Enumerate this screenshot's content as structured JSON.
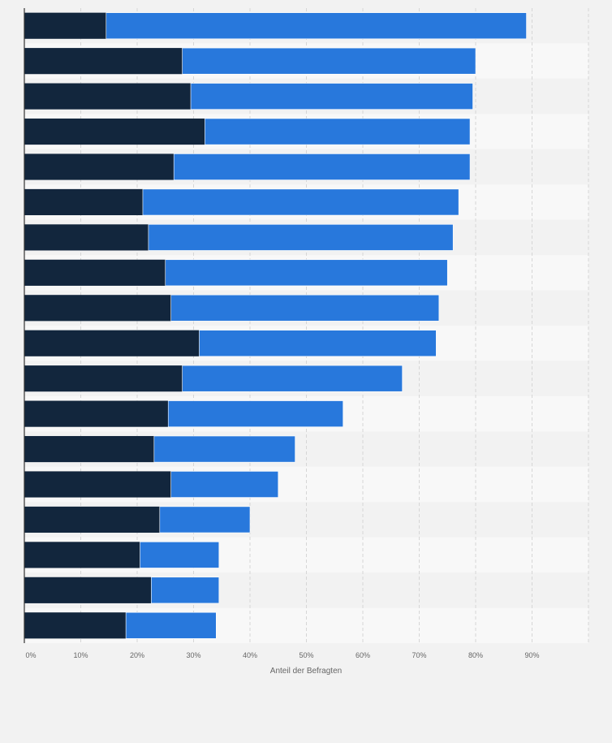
{
  "chart_data": {
    "type": "bar",
    "orientation": "horizontal",
    "stacked": true,
    "categories": [
      "",
      "",
      "",
      "",
      "",
      "",
      "",
      "",
      "",
      "",
      "",
      "",
      "",
      "",
      "",
      "",
      "",
      ""
    ],
    "series": [
      {
        "color": "#12263d",
        "values": [
          14.5,
          28,
          29.5,
          32,
          26.5,
          21,
          22,
          25,
          26,
          31,
          28,
          25.5,
          23,
          26,
          24,
          20.5,
          22.5,
          18
        ]
      },
      {
        "color": "#2878dc",
        "values": [
          74.5,
          52,
          50,
          47,
          52.5,
          56,
          54,
          50,
          47.5,
          42,
          39,
          31,
          25,
          19,
          16,
          14,
          12,
          16
        ]
      }
    ],
    "xlabel": "Anteil der Befragten",
    "ylabel": "",
    "xlim": [
      0,
      100
    ],
    "xticks": [
      0,
      10,
      20,
      30,
      40,
      50,
      60,
      70,
      80,
      90
    ],
    "xtick_labels": [
      "0%",
      "10%",
      "20%",
      "30%",
      "40%",
      "50%",
      "60%",
      "70%",
      "80%",
      "90%"
    ],
    "grid": true,
    "legend": "none"
  }
}
